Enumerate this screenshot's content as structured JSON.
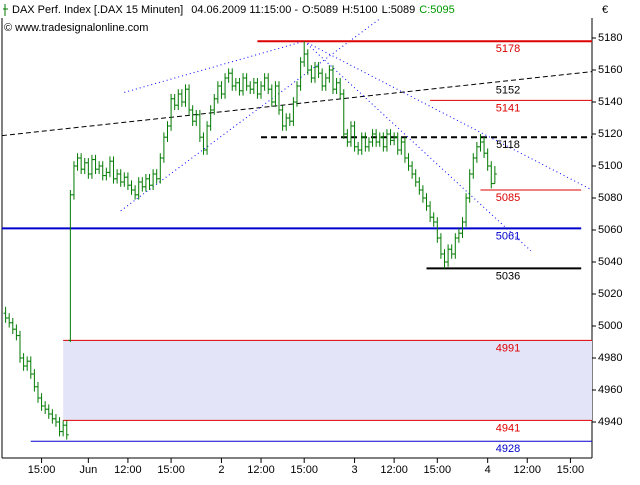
{
  "chart_data": {
    "type": "ohlc",
    "title": "DAX Perf. Index [.DAX  15 Minuten]",
    "datetime": "04.06.2009 11:15:00 -",
    "quote": [
      "O:5089",
      "H:5100",
      "L:5089",
      "C:5095"
    ],
    "quote_colors": [
      "#000000",
      "#000000",
      "#000000",
      "#009900"
    ],
    "watermark": "© www.tradesignalonline.com",
    "currency": "€",
    "color": "#007a00",
    "xlim": [
      0,
      164
    ],
    "ylim": [
      4917.5,
      5192.5
    ],
    "yticks": [
      4940,
      4960,
      4980,
      5000,
      5020,
      5040,
      5060,
      5080,
      5100,
      5120,
      5140,
      5160,
      5180
    ],
    "xticks": [
      {
        "value": 11,
        "label": "15:00"
      },
      {
        "value": 24,
        "label": "Jun"
      },
      {
        "value": 35,
        "label": "12:00"
      },
      {
        "value": 47,
        "label": "15:00"
      },
      {
        "value": 61,
        "label": "2"
      },
      {
        "value": 72,
        "label": "12:00"
      },
      {
        "value": 84,
        "label": "15:00"
      },
      {
        "value": 98,
        "label": "3"
      },
      {
        "value": 109,
        "label": "12:00"
      },
      {
        "value": 121,
        "label": "15:00"
      },
      {
        "value": 135,
        "label": "4"
      },
      {
        "value": 146,
        "label": "12:00"
      },
      {
        "value": 158,
        "label": "15:00"
      }
    ],
    "x": [
      1,
      2,
      3,
      4,
      5,
      6,
      7,
      8,
      9,
      10,
      11,
      12,
      13,
      14,
      15,
      16,
      17,
      18,
      19,
      20,
      21,
      22,
      23,
      24,
      25,
      26,
      27,
      28,
      29,
      30,
      31,
      32,
      33,
      34,
      35,
      36,
      37,
      38,
      39,
      40,
      41,
      42,
      43,
      44,
      45,
      46,
      47,
      48,
      49,
      50,
      51,
      52,
      53,
      54,
      55,
      56,
      57,
      58,
      59,
      60,
      61,
      62,
      63,
      64,
      65,
      66,
      67,
      68,
      69,
      70,
      71,
      72,
      73,
      74,
      75,
      76,
      77,
      78,
      79,
      80,
      81,
      82,
      83,
      84,
      85,
      86,
      87,
      88,
      89,
      90,
      91,
      92,
      93,
      94,
      95,
      96,
      97,
      98,
      99,
      100,
      101,
      102,
      103,
      104,
      105,
      106,
      107,
      108,
      109,
      110,
      111,
      112,
      113,
      114,
      115,
      116,
      117,
      118,
      119,
      120,
      121,
      122,
      123,
      124,
      125,
      126,
      127,
      128,
      129,
      130,
      131,
      132,
      133,
      134,
      135,
      136,
      137
    ],
    "bars": [
      [
        5008,
        5012,
        5002,
        5005
      ],
      [
        5005,
        5008,
        4999,
        5002
      ],
      [
        5002,
        5005,
        4995,
        4998
      ],
      [
        4998,
        5001,
        4991,
        4994
      ],
      [
        4994,
        4997,
        4977,
        4980
      ],
      [
        4980,
        4983,
        4972,
        4975
      ],
      [
        4975,
        4981,
        4972,
        4978
      ],
      [
        4978,
        4981,
        4967,
        4970
      ],
      [
        4970,
        4973,
        4959,
        4962
      ],
      [
        4962,
        4965,
        4952,
        4955
      ],
      [
        4955,
        4958,
        4947,
        4950
      ],
      [
        4950,
        4953,
        4945,
        4948
      ],
      [
        4948,
        4951,
        4942,
        4945
      ],
      [
        4945,
        4948,
        4939,
        4942
      ],
      [
        4942,
        4945,
        4937,
        4940
      ],
      [
        4940,
        4943,
        4931,
        4934
      ],
      [
        4934,
        4941,
        4931,
        4938
      ],
      [
        4938,
        4941,
        4929,
        4932
      ],
      [
        4991,
        5085,
        4990,
        5082
      ],
      [
        5082,
        5103,
        5079,
        5100
      ],
      [
        5100,
        5108,
        5097,
        5105
      ],
      [
        5105,
        5108,
        5095,
        5098
      ],
      [
        5098,
        5105,
        5095,
        5102
      ],
      [
        5102,
        5105,
        5092,
        5095
      ],
      [
        5095,
        5107,
        5092,
        5104
      ],
      [
        5104,
        5107,
        5095,
        5098
      ],
      [
        5098,
        5103,
        5095,
        5100
      ],
      [
        5100,
        5103,
        5091,
        5094
      ],
      [
        5094,
        5099,
        5091,
        5096
      ],
      [
        5096,
        5106,
        5093,
        5103
      ],
      [
        5103,
        5106,
        5089,
        5092
      ],
      [
        5092,
        5098,
        5089,
        5095
      ],
      [
        5095,
        5098,
        5087,
        5090
      ],
      [
        5090,
        5096,
        5087,
        5093
      ],
      [
        5093,
        5096,
        5085,
        5088
      ],
      [
        5088,
        5091,
        5082,
        5085
      ],
      [
        5085,
        5088,
        5079,
        5082
      ],
      [
        5082,
        5093,
        5079,
        5090
      ],
      [
        5090,
        5093,
        5084,
        5087
      ],
      [
        5087,
        5095,
        5084,
        5092
      ],
      [
        5092,
        5095,
        5085,
        5088
      ],
      [
        5088,
        5098,
        5085,
        5095
      ],
      [
        5095,
        5098,
        5089,
        5092
      ],
      [
        5092,
        5108,
        5089,
        5105
      ],
      [
        5105,
        5121,
        5102,
        5118
      ],
      [
        5118,
        5128,
        5115,
        5125
      ],
      [
        5125,
        5145,
        5122,
        5142
      ],
      [
        5142,
        5145,
        5135,
        5138
      ],
      [
        5138,
        5148,
        5135,
        5145
      ],
      [
        5145,
        5148,
        5137,
        5140
      ],
      [
        5140,
        5151,
        5137,
        5148
      ],
      [
        5148,
        5151,
        5132,
        5135
      ],
      [
        5135,
        5138,
        5125,
        5128
      ],
      [
        5128,
        5135,
        5125,
        5132
      ],
      [
        5132,
        5135,
        5115,
        5118
      ],
      [
        5118,
        5121,
        5107,
        5110
      ],
      [
        5110,
        5128,
        5107,
        5125
      ],
      [
        5125,
        5138,
        5122,
        5135
      ],
      [
        5135,
        5145,
        5132,
        5142
      ],
      [
        5142,
        5153,
        5139,
        5150
      ],
      [
        5150,
        5153,
        5142,
        5145
      ],
      [
        5145,
        5158,
        5142,
        5155
      ],
      [
        5155,
        5161,
        5152,
        5158
      ],
      [
        5158,
        5161,
        5147,
        5150
      ],
      [
        5150,
        5155,
        5147,
        5152
      ],
      [
        5152,
        5155,
        5144,
        5147
      ],
      [
        5147,
        5158,
        5144,
        5155
      ],
      [
        5155,
        5158,
        5147,
        5150
      ],
      [
        5150,
        5153,
        5145,
        5148
      ],
      [
        5148,
        5155,
        5145,
        5152
      ],
      [
        5152,
        5155,
        5142,
        5145
      ],
      [
        5145,
        5153,
        5142,
        5150
      ],
      [
        5150,
        5158,
        5147,
        5155
      ],
      [
        5155,
        5158,
        5145,
        5148
      ],
      [
        5148,
        5151,
        5137,
        5140
      ],
      [
        5140,
        5153,
        5137,
        5150
      ],
      [
        5150,
        5153,
        5132,
        5135
      ],
      [
        5135,
        5138,
        5122,
        5125
      ],
      [
        5125,
        5133,
        5122,
        5130
      ],
      [
        5130,
        5133,
        5125,
        5128
      ],
      [
        5128,
        5143,
        5125,
        5140
      ],
      [
        5140,
        5153,
        5137,
        5150
      ],
      [
        5150,
        5168,
        5147,
        5165
      ],
      [
        5165,
        5178,
        5162,
        5170
      ],
      [
        5170,
        5173,
        5157,
        5160
      ],
      [
        5160,
        5163,
        5152,
        5155
      ],
      [
        5155,
        5165,
        5152,
        5162
      ],
      [
        5162,
        5165,
        5155,
        5158
      ],
      [
        5158,
        5161,
        5147,
        5150
      ],
      [
        5150,
        5158,
        5147,
        5155
      ],
      [
        5155,
        5163,
        5152,
        5160
      ],
      [
        5160,
        5163,
        5145,
        5148
      ],
      [
        5148,
        5155,
        5145,
        5152
      ],
      [
        5152,
        5155,
        5142,
        5145
      ],
      [
        5145,
        5148,
        5117,
        5120
      ],
      [
        5120,
        5123,
        5112,
        5115
      ],
      [
        5115,
        5128,
        5112,
        5125
      ],
      [
        5125,
        5128,
        5109,
        5112
      ],
      [
        5112,
        5115,
        5107,
        5110
      ],
      [
        5110,
        5121,
        5107,
        5118
      ],
      [
        5118,
        5121,
        5109,
        5112
      ],
      [
        5112,
        5118,
        5109,
        5115
      ],
      [
        5115,
        5123,
        5112,
        5120
      ],
      [
        5120,
        5123,
        5112,
        5115
      ],
      [
        5115,
        5121,
        5112,
        5118
      ],
      [
        5118,
        5121,
        5109,
        5112
      ],
      [
        5112,
        5123,
        5109,
        5120
      ],
      [
        5120,
        5123,
        5113,
        5116
      ],
      [
        5116,
        5121,
        5113,
        5118
      ],
      [
        5118,
        5121,
        5107,
        5110
      ],
      [
        5110,
        5118,
        5107,
        5115
      ],
      [
        5115,
        5118,
        5102,
        5105
      ],
      [
        5105,
        5108,
        5097,
        5100
      ],
      [
        5100,
        5103,
        5092,
        5095
      ],
      [
        5095,
        5098,
        5087,
        5090
      ],
      [
        5090,
        5093,
        5082,
        5085
      ],
      [
        5085,
        5088,
        5077,
        5080
      ],
      [
        5080,
        5083,
        5072,
        5075
      ],
      [
        5075,
        5078,
        5065,
        5068
      ],
      [
        5068,
        5071,
        5062,
        5065
      ],
      [
        5065,
        5068,
        5052,
        5055
      ],
      [
        5055,
        5058,
        5042,
        5045
      ],
      [
        5045,
        5048,
        5036,
        5040
      ],
      [
        5040,
        5051,
        5037,
        5048
      ],
      [
        5048,
        5051,
        5042,
        5045
      ],
      [
        5045,
        5058,
        5042,
        5055
      ],
      [
        5055,
        5061,
        5052,
        5058
      ],
      [
        5058,
        5068,
        5055,
        5065
      ],
      [
        5065,
        5083,
        5062,
        5080
      ],
      [
        5080,
        5098,
        5077,
        5095
      ],
      [
        5095,
        5108,
        5092,
        5105
      ],
      [
        5105,
        5115,
        5102,
        5112
      ],
      [
        5112,
        5120,
        5109,
        5115
      ],
      [
        5115,
        5118,
        5105,
        5108
      ],
      [
        5108,
        5111,
        5097,
        5100
      ],
      [
        5100,
        5103,
        5086,
        5089
      ],
      [
        5089,
        5100,
        5089,
        5095
      ]
    ],
    "zone": {
      "low": 4941,
      "high": 4991,
      "from": 17,
      "to": 164,
      "fill": "#e4e4f8",
      "color": "#e00000"
    },
    "levels": [
      {
        "value": 5178,
        "from": 71,
        "to": 164,
        "color": "#dd0000",
        "thick": true,
        "dashed": false
      },
      {
        "value": 5141,
        "from": 119,
        "to": 164,
        "color": "#dd0000",
        "thick": false,
        "dashed": false
      },
      {
        "value": 5118,
        "from": 72,
        "to": 164,
        "color": "#000000",
        "thick": true,
        "dashed": true
      },
      {
        "value": 5085,
        "from": 133,
        "to": 161,
        "color": "#dd0000",
        "thick": false,
        "dashed": false
      },
      {
        "value": 5061,
        "from": 0,
        "to": 161,
        "color": "#0000cc",
        "thick": true,
        "dashed": false
      },
      {
        "value": 5036,
        "from": 118,
        "to": 161,
        "color": "#000000",
        "thick": true,
        "dashed": false
      },
      {
        "value": 4928,
        "from": 8,
        "to": 164,
        "color": "#0000cc",
        "thick": false,
        "dashed": false
      }
    ],
    "trend_label": 5152,
    "trendlines": [
      {
        "x": [
          0,
          164
        ],
        "y": [
          5119,
          5159
        ],
        "color": "#000000",
        "dotted": false
      },
      {
        "x": [
          34,
          84
        ],
        "y": [
          5146,
          5178
        ],
        "color": "#0000ff",
        "dotted": true
      },
      {
        "x": [
          33,
          105
        ],
        "y": [
          5072,
          5192
        ],
        "color": "#0000ff",
        "dotted": true
      },
      {
        "x": [
          84,
          164
        ],
        "y": [
          5178,
          5085
        ],
        "color": "#0000ff",
        "dotted": true
      },
      {
        "x": [
          84,
          147
        ],
        "y": [
          5178,
          5047
        ],
        "color": "#0000ff",
        "dotted": true
      }
    ]
  }
}
